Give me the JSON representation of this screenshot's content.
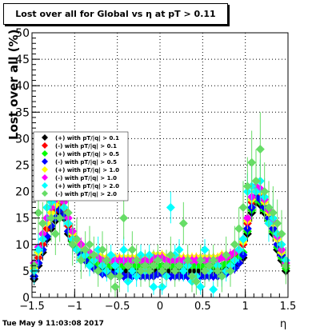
{
  "title": "Lost over all for Global vs   η at pT > 0.11",
  "footer_date": "Tue May  9 11:03:08 2017",
  "colors": {
    "frame": "#000000",
    "grid": "#000000",
    "background": "#ffffff"
  },
  "chart_data": {
    "type": "scatter",
    "xlabel": "η",
    "ylabel": "Lost over all (%)",
    "xlim": [
      -1.5,
      1.5
    ],
    "ylim": [
      0,
      50
    ],
    "grid": true,
    "legend_position": "middle-left",
    "x_ticks": [
      -1.5,
      -1,
      -0.5,
      0,
      0.5,
      1,
      1.5
    ],
    "x_tick_labels": [
      "−1.5",
      "−1",
      "−0.5",
      "0",
      "0.5",
      "1",
      "1.5"
    ],
    "y_ticks": [
      0,
      5,
      10,
      15,
      20,
      25,
      30,
      35,
      40,
      45,
      50
    ],
    "y_tick_labels": [
      "0",
      "5",
      "10",
      "15",
      "20",
      "25",
      "30",
      "35",
      "40",
      "45",
      "50"
    ],
    "x": [
      -1.475,
      -1.425,
      -1.375,
      -1.325,
      -1.275,
      -1.225,
      -1.175,
      -1.125,
      -1.075,
      -1.025,
      -0.975,
      -0.925,
      -0.875,
      -0.825,
      -0.775,
      -0.725,
      -0.675,
      -0.625,
      -0.575,
      -0.525,
      -0.475,
      -0.425,
      -0.375,
      -0.325,
      -0.275,
      -0.225,
      -0.175,
      -0.125,
      -0.075,
      -0.025,
      0.025,
      0.075,
      0.125,
      0.175,
      0.225,
      0.275,
      0.325,
      0.375,
      0.425,
      0.475,
      0.525,
      0.575,
      0.625,
      0.675,
      0.725,
      0.775,
      0.825,
      0.875,
      0.925,
      0.975,
      1.025,
      1.075,
      1.125,
      1.175,
      1.225,
      1.275,
      1.325,
      1.375,
      1.425,
      1.475
    ],
    "series": [
      {
        "name": "(+) with pT/|q| > 0.1",
        "color": "#000000",
        "marker": "diamond",
        "values": [
          3.5,
          6.0,
          8.5,
          11.0,
          13.0,
          14.5,
          16.0,
          15.0,
          12.0,
          10.0,
          9.0,
          8.0,
          7.0,
          6.5,
          6.0,
          5.5,
          5.5,
          5.0,
          5.0,
          5.0,
          5.0,
          5.0,
          5.0,
          5.0,
          5.0,
          5.0,
          5.0,
          5.0,
          5.0,
          5.0,
          5.0,
          5.0,
          5.0,
          5.0,
          5.0,
          5.0,
          5.0,
          5.0,
          5.0,
          5.0,
          5.0,
          5.0,
          5.0,
          5.0,
          5.0,
          5.5,
          5.5,
          6.0,
          6.5,
          7.5,
          12.0,
          16.0,
          18.0,
          17.5,
          16.0,
          14.0,
          12.0,
          9.0,
          7.0,
          5.0
        ],
        "errors": [
          1.2,
          1.4,
          1.5,
          1.5,
          1.6,
          1.6,
          1.7,
          1.6,
          1.5,
          1.4,
          1.2,
          1.1,
          1.0,
          1.0,
          1.0,
          0.9,
          0.9,
          0.9,
          0.9,
          0.9,
          0.9,
          0.9,
          0.9,
          0.9,
          0.9,
          0.9,
          0.9,
          0.9,
          0.9,
          0.9,
          0.9,
          0.9,
          0.9,
          0.9,
          0.9,
          0.9,
          0.9,
          0.9,
          0.9,
          0.9,
          0.9,
          0.9,
          0.9,
          0.9,
          0.9,
          0.9,
          1.0,
          1.0,
          1.0,
          1.2,
          1.5,
          1.7,
          1.8,
          1.8,
          1.7,
          1.6,
          1.5,
          1.3,
          1.2,
          1.0
        ]
      },
      {
        "name": "(-) with pT/|q| > 0.1",
        "color": "#ff0000",
        "marker": "diamond",
        "values": [
          5.0,
          7.5,
          10.0,
          13.0,
          15.0,
          16.5,
          17.5,
          16.5,
          13.5,
          11.5,
          10.0,
          9.0,
          8.5,
          8.0,
          7.5,
          7.0,
          7.0,
          7.0,
          7.0,
          7.0,
          7.0,
          7.0,
          7.0,
          7.0,
          7.0,
          7.0,
          7.0,
          7.0,
          7.0,
          7.5,
          7.5,
          7.0,
          7.0,
          7.0,
          7.0,
          7.0,
          7.0,
          7.0,
          7.5,
          7.5,
          7.5,
          7.5,
          7.5,
          7.5,
          7.5,
          7.5,
          7.5,
          8.0,
          8.5,
          10.0,
          14.0,
          18.0,
          20.0,
          19.0,
          17.0,
          15.0,
          13.0,
          10.0,
          8.0,
          6.0
        ],
        "errors": [
          1.2,
          1.4,
          1.5,
          1.5,
          1.6,
          1.6,
          1.7,
          1.6,
          1.5,
          1.4,
          1.2,
          1.1,
          1.0,
          1.0,
          1.0,
          0.9,
          0.9,
          0.9,
          0.9,
          0.9,
          0.9,
          0.9,
          0.9,
          0.9,
          0.9,
          0.9,
          0.9,
          0.9,
          0.9,
          0.9,
          0.9,
          0.9,
          0.9,
          0.9,
          0.9,
          0.9,
          0.9,
          0.9,
          0.9,
          0.9,
          0.9,
          0.9,
          0.9,
          0.9,
          0.9,
          0.9,
          1.0,
          1.0,
          1.0,
          1.2,
          1.5,
          1.7,
          1.8,
          1.8,
          1.7,
          1.6,
          1.5,
          1.3,
          1.2,
          1.0
        ]
      },
      {
        "name": "(+) with pT/|q| > 0.5",
        "color": "#00ff00",
        "marker": "diamond",
        "values": [
          4.0,
          6.5,
          9.0,
          11.5,
          13.5,
          15.0,
          16.5,
          15.5,
          12.5,
          10.5,
          9.5,
          8.5,
          7.5,
          7.0,
          6.5,
          6.0,
          6.0,
          6.0,
          6.0,
          6.0,
          6.0,
          6.0,
          6.0,
          6.0,
          6.0,
          6.0,
          6.0,
          6.0,
          6.0,
          6.0,
          6.0,
          6.0,
          6.0,
          6.0,
          6.0,
          6.0,
          6.0,
          6.0,
          6.0,
          6.0,
          6.0,
          6.0,
          6.0,
          6.0,
          6.0,
          6.5,
          6.5,
          7.0,
          7.5,
          8.5,
          12.5,
          16.5,
          18.5,
          18.0,
          16.5,
          14.5,
          12.5,
          9.5,
          7.5,
          5.5
        ],
        "errors": [
          1.2,
          1.4,
          1.5,
          1.5,
          1.6,
          1.6,
          1.7,
          1.6,
          1.5,
          1.4,
          1.2,
          1.1,
          1.0,
          1.0,
          1.0,
          0.9,
          0.9,
          0.9,
          0.9,
          0.9,
          0.9,
          0.9,
          0.9,
          0.9,
          0.9,
          0.9,
          0.9,
          0.9,
          0.9,
          0.9,
          0.9,
          0.9,
          0.9,
          0.9,
          0.9,
          0.9,
          0.9,
          0.9,
          0.9,
          0.9,
          0.9,
          0.9,
          0.9,
          0.9,
          0.9,
          0.9,
          1.0,
          1.0,
          1.0,
          1.2,
          1.5,
          1.7,
          1.8,
          1.8,
          1.7,
          1.6,
          1.5,
          1.3,
          1.2,
          1.0
        ]
      },
      {
        "name": "(-) with pT/|q| > 0.5",
        "color": "#0000ff",
        "marker": "diamond",
        "values": [
          4.0,
          6.5,
          9.0,
          11.5,
          13.5,
          15.0,
          16.5,
          15.5,
          12.5,
          10.0,
          9.0,
          8.0,
          7.0,
          6.0,
          5.5,
          5.0,
          4.5,
          4.5,
          4.5,
          4.5,
          4.0,
          4.0,
          4.0,
          4.0,
          4.0,
          4.0,
          4.0,
          4.0,
          4.0,
          4.5,
          4.5,
          4.0,
          4.0,
          4.0,
          4.0,
          4.0,
          4.0,
          4.0,
          4.0,
          4.0,
          4.0,
          4.0,
          4.0,
          4.0,
          4.0,
          4.5,
          5.0,
          5.5,
          6.5,
          8.0,
          13.0,
          17.0,
          19.0,
          18.5,
          17.0,
          15.0,
          13.0,
          10.0,
          8.0,
          6.0
        ],
        "errors": [
          1.2,
          1.4,
          1.5,
          1.5,
          1.6,
          1.6,
          1.7,
          1.6,
          1.5,
          1.4,
          1.2,
          1.1,
          1.0,
          1.0,
          1.0,
          0.9,
          0.9,
          0.9,
          0.9,
          0.9,
          0.9,
          0.9,
          0.9,
          0.9,
          0.9,
          0.9,
          0.9,
          0.9,
          0.9,
          0.9,
          0.9,
          0.9,
          0.9,
          0.9,
          0.9,
          0.9,
          0.9,
          0.9,
          0.9,
          0.9,
          0.9,
          0.9,
          0.9,
          0.9,
          0.9,
          0.9,
          1.0,
          1.0,
          1.0,
          1.2,
          1.5,
          1.7,
          1.8,
          1.8,
          1.7,
          1.6,
          1.5,
          1.3,
          1.2,
          1.0
        ]
      },
      {
        "name": "(+) with pT/|q| > 1.0",
        "color": "#ffff00",
        "marker": "diamond",
        "values": [
          5.5,
          8.5,
          11.0,
          14.0,
          16.0,
          17.5,
          18.5,
          17.0,
          14.0,
          12.0,
          10.5,
          9.5,
          9.0,
          8.5,
          8.0,
          8.0,
          7.5,
          7.5,
          7.5,
          7.5,
          7.5,
          7.5,
          7.5,
          7.5,
          7.5,
          7.5,
          7.5,
          7.5,
          8.0,
          8.0,
          8.0,
          7.5,
          7.5,
          7.5,
          7.5,
          7.5,
          7.5,
          7.5,
          7.5,
          7.5,
          7.5,
          7.5,
          7.5,
          7.5,
          8.0,
          8.0,
          8.0,
          8.5,
          9.0,
          10.5,
          14.5,
          18.5,
          20.5,
          20.0,
          18.0,
          16.0,
          14.0,
          11.0,
          8.5,
          6.0
        ],
        "errors": [
          1.3,
          1.5,
          1.6,
          1.6,
          1.7,
          1.7,
          1.8,
          1.7,
          1.6,
          1.5,
          1.3,
          1.2,
          1.1,
          1.1,
          1.1,
          1.0,
          1.0,
          1.0,
          1.0,
          1.0,
          1.0,
          1.0,
          1.0,
          1.0,
          1.0,
          1.0,
          1.0,
          1.0,
          1.0,
          1.0,
          1.0,
          1.0,
          1.0,
          1.0,
          1.0,
          1.0,
          1.0,
          1.0,
          1.0,
          1.0,
          1.0,
          1.0,
          1.0,
          1.0,
          1.0,
          1.0,
          1.1,
          1.1,
          1.1,
          1.3,
          1.6,
          1.8,
          1.9,
          1.9,
          1.8,
          1.7,
          1.6,
          1.4,
          1.3,
          1.1
        ]
      },
      {
        "name": "(-) with pT/|q| > 1.0",
        "color": "#ff00ff",
        "marker": "diamond",
        "values": [
          6.5,
          9.5,
          12.0,
          15.0,
          17.0,
          18.5,
          19.5,
          18.0,
          15.0,
          12.5,
          11.0,
          10.0,
          9.0,
          8.5,
          8.0,
          7.5,
          7.0,
          7.0,
          7.0,
          7.0,
          7.0,
          7.0,
          7.0,
          7.0,
          7.0,
          7.0,
          7.0,
          7.0,
          7.5,
          7.5,
          7.5,
          7.0,
          7.0,
          7.0,
          7.0,
          7.0,
          7.0,
          7.0,
          7.0,
          7.0,
          7.0,
          7.0,
          7.0,
          7.0,
          7.5,
          7.5,
          8.0,
          8.5,
          9.0,
          11.0,
          15.0,
          19.0,
          21.0,
          20.5,
          18.5,
          16.5,
          14.5,
          11.5,
          9.0,
          6.5
        ],
        "errors": [
          1.4,
          1.6,
          1.7,
          1.7,
          1.8,
          1.8,
          1.9,
          1.8,
          1.7,
          1.6,
          1.4,
          1.3,
          1.2,
          1.2,
          1.2,
          1.1,
          1.1,
          1.1,
          1.1,
          1.1,
          1.1,
          1.1,
          1.1,
          1.1,
          1.1,
          1.1,
          1.1,
          1.1,
          1.1,
          1.1,
          1.1,
          1.1,
          1.1,
          1.1,
          1.1,
          1.1,
          1.1,
          1.1,
          1.1,
          1.1,
          1.1,
          1.1,
          1.1,
          1.1,
          1.1,
          1.1,
          1.2,
          1.2,
          1.2,
          1.4,
          1.7,
          1.9,
          2.0,
          2.0,
          1.9,
          1.8,
          1.7,
          1.5,
          1.4,
          1.2
        ]
      },
      {
        "name": "(+) with pT/|q| > 2.0",
        "color": "#00ffff",
        "marker": "diamond",
        "values": [
          5.0,
          9.0,
          11.0,
          17.0,
          18.0,
          19.0,
          20.0,
          17.0,
          14.0,
          11.0,
          9.0,
          7.5,
          8.0,
          6.0,
          7.0,
          9.0,
          6.0,
          5.0,
          8.0,
          6.0,
          5.0,
          9.0,
          3.0,
          5.0,
          4.0,
          8.0,
          5.0,
          8.0,
          2.0,
          7.0,
          2.0,
          4.0,
          17.0,
          8.0,
          9.0,
          5.0,
          6.0,
          3.0,
          4.0,
          2.0,
          9.0,
          5.0,
          1.5,
          6.0,
          4.0,
          5.0,
          6.0,
          7.0,
          9.0,
          11.0,
          20.0,
          21.0,
          20.0,
          22.0,
          19.0,
          14.0,
          15.0,
          12.0,
          10.0,
          7.0
        ],
        "errors": [
          2.5,
          3.0,
          3.0,
          3.5,
          3.5,
          3.5,
          3.5,
          3.5,
          3.0,
          3.0,
          2.5,
          2.5,
          2.5,
          2.0,
          2.0,
          2.5,
          2.0,
          2.0,
          2.0,
          2.0,
          2.0,
          2.5,
          2.0,
          2.0,
          2.0,
          2.0,
          2.0,
          2.0,
          1.5,
          2.0,
          1.5,
          2.0,
          3.0,
          2.0,
          2.0,
          2.0,
          2.0,
          1.5,
          2.0,
          1.5,
          2.0,
          2.0,
          1.5,
          2.0,
          2.0,
          2.0,
          2.0,
          2.0,
          2.5,
          3.0,
          3.5,
          4.0,
          4.0,
          4.0,
          3.5,
          3.5,
          3.5,
          3.0,
          3.0,
          2.5
        ]
      },
      {
        "name": "(-) with pT/|q| > 2.0",
        "color": "#66dd66",
        "marker": "diamond",
        "values": [
          6.0,
          16.0,
          14.0,
          21.0,
          15.0,
          12.0,
          15.0,
          20.0,
          16.0,
          10.0,
          11.0,
          7.0,
          9.0,
          10.0,
          8.0,
          5.0,
          9.0,
          7.0,
          4.0,
          2.0,
          4.0,
          15.0,
          6.0,
          9.0,
          7.0,
          5.0,
          6.0,
          5.0,
          6.0,
          7.0,
          5.0,
          6.0,
          8.0,
          5.0,
          6.0,
          14.0,
          7.0,
          4.0,
          3.0,
          7.0,
          5.0,
          6.0,
          7.0,
          5.0,
          4.0,
          8.0,
          5.0,
          10.0,
          13.0,
          17.0,
          21.0,
          25.5,
          22.0,
          28.0,
          20.0,
          17.0,
          16.0,
          14.0,
          12.0,
          6.0
        ],
        "errors": [
          3.0,
          4.0,
          4.0,
          5.0,
          4.5,
          4.0,
          4.5,
          5.0,
          4.5,
          4.0,
          4.0,
          3.5,
          3.5,
          3.5,
          3.5,
          3.0,
          3.5,
          3.0,
          3.0,
          2.5,
          3.0,
          4.0,
          3.0,
          3.5,
          3.0,
          3.0,
          3.0,
          3.0,
          3.0,
          3.0,
          3.0,
          3.0,
          3.5,
          3.0,
          3.0,
          4.0,
          3.0,
          3.0,
          2.5,
          3.0,
          3.0,
          3.0,
          3.0,
          3.0,
          3.0,
          3.5,
          3.0,
          3.5,
          4.0,
          5.0,
          5.5,
          6.0,
          6.0,
          7.0,
          5.5,
          5.0,
          5.0,
          4.5,
          4.5,
          3.5
        ]
      }
    ]
  }
}
